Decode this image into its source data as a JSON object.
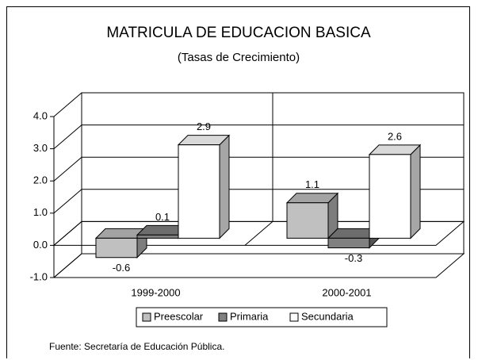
{
  "chart_data": {
    "type": "bar3d",
    "title": "MATRICULA DE EDUCACION BASICA",
    "subtitle": "(Tasas de Crecimiento)",
    "categories": [
      "1999-2000",
      "2000-2001"
    ],
    "series": [
      {
        "name": "Preescolar",
        "color": "#c0c0c0",
        "values": [
          -0.6,
          1.1
        ]
      },
      {
        "name": "Primaria",
        "color": "#808080",
        "values": [
          0.1,
          -0.3
        ]
      },
      {
        "name": "Secundaria",
        "color": "#ffffff",
        "values": [
          2.9,
          2.6
        ]
      }
    ],
    "ylim": [
      -1,
      4
    ],
    "yticks": [
      {
        "value": -1,
        "label": "-1.0"
      },
      {
        "value": 0,
        "label": "0.0"
      },
      {
        "value": 1,
        "label": "1.0"
      },
      {
        "value": 2,
        "label": "2.0"
      },
      {
        "value": 3,
        "label": "3.0"
      },
      {
        "value": 4,
        "label": "4.0"
      }
    ],
    "grid": true,
    "legend": "bottom",
    "source": "Fuente: Secretaría de Educación Pública."
  }
}
